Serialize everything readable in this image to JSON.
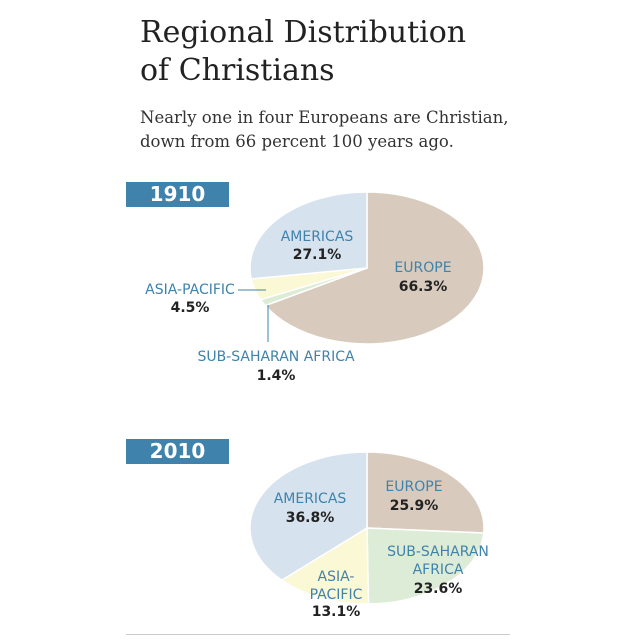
{
  "title_line1": "Regional Distribution",
  "title_line2": "of Christians",
  "subtitle_line1": "Nearly one in four Europeans are Christian,",
  "subtitle_line2": "down from 66 percent 100 years ago.",
  "colors": {
    "accent": "#3f82ab",
    "europe": "#d8cbbd",
    "americas": "#d6e2ee",
    "asia_pacific": "#fbf8d5",
    "sub_saharan_africa": "#ddecd6"
  },
  "chart_data": [
    {
      "type": "pie",
      "title": "1910",
      "categories": [
        "EUROPE",
        "SUB-SAHARAN AFRICA",
        "ASIA-PACIFIC",
        "AMERICAS"
      ],
      "values": [
        66.3,
        1.4,
        4.5,
        27.1
      ],
      "value_labels": [
        "66.3%",
        "1.4%",
        "4.5%",
        "27.1%"
      ]
    },
    {
      "type": "pie",
      "title": "2010",
      "categories": [
        "EUROPE",
        "SUB-SAHARAN AFRICA",
        "ASIA-PACIFIC",
        "AMERICAS"
      ],
      "values": [
        25.9,
        23.6,
        13.1,
        36.8
      ],
      "value_labels": [
        "25.9%",
        "23.6%",
        "13.1%",
        "36.8%"
      ]
    }
  ],
  "label_text": {
    "p1910": {
      "americas_name": "AMERICAS",
      "europe_name": "EUROPE",
      "asia_name": "ASIA-PACIFIC",
      "africa_name": "SUB-SAHARAN AFRICA"
    },
    "p2010": {
      "americas_name": "AMERICAS",
      "europe_name": "EUROPE",
      "africa_line1": "SUB-SAHARAN",
      "africa_line2": "AFRICA",
      "asia_line1": "ASIA-",
      "asia_line2": "PACIFIC"
    }
  }
}
